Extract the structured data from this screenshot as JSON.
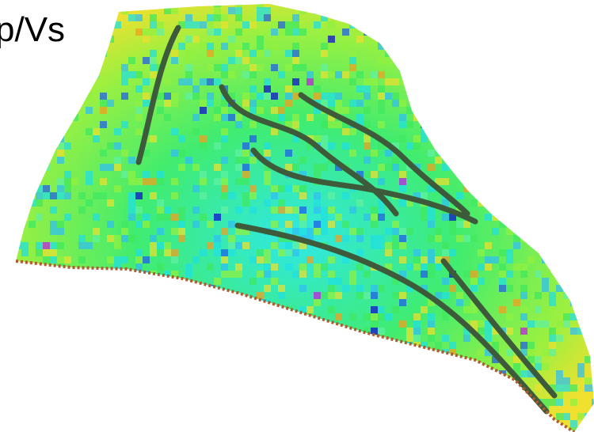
{
  "label": "p/Vs"
}
